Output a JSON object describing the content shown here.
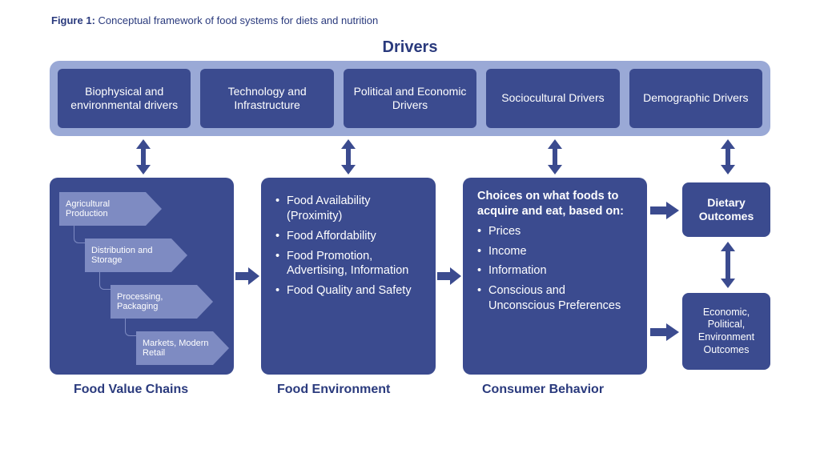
{
  "colors": {
    "dark": "#3b4b8f",
    "band": "#9aa9d6",
    "chain_arrow": "#7e8bc2",
    "text_heading": "#2a3a7d",
    "caption": "#2a3a7d",
    "white": "#ffffff"
  },
  "caption_prefix": "Figure 1:",
  "caption_text": " Conceptual framework of food systems for diets and nutrition",
  "drivers_title": "Drivers",
  "drivers": [
    "Biophysical and environmental drivers",
    "Technology and Infrastructure",
    "Political and Economic Drivers",
    "Sociocultural Drivers",
    "Demographic Drivers"
  ],
  "chain_steps": [
    "Agricultural Production",
    "Distribution and Storage",
    "Processing, Packaging",
    "Markets, Modern Retail"
  ],
  "food_env_bullets": [
    "Food Availability (Proximity)",
    "Food Affordability",
    "Food Promotion, Advertising, Information",
    "Food Quality and Safety"
  ],
  "consumer_lead": "Choices on what foods to acquire and eat, based on:",
  "consumer_bullets": [
    "Prices",
    "Income",
    "Information",
    "Conscious and Unconscious Preferences"
  ],
  "outcomes_dietary": "Dietary Outcomes",
  "outcomes_other": "Economic, Political, Environment Outcomes",
  "module_labels": {
    "m1": "Food Value Chains",
    "m2": "Food Environment",
    "m3": "Consumer Behavior"
  }
}
